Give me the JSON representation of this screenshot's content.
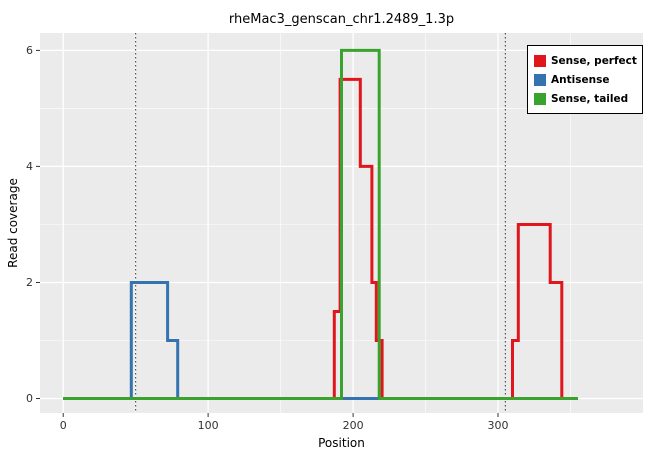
{
  "chart_data": {
    "type": "line",
    "title": "rheMac3_genscan_chr1.2489_1.3p",
    "xlabel": "Position",
    "ylabel": "Read coverage",
    "xlim": [
      -16,
      400
    ],
    "ylim": [
      -0.25,
      6.3
    ],
    "x_ticks": [
      0,
      100,
      200,
      300
    ],
    "y_ticks": [
      0,
      2,
      4,
      6
    ],
    "x_minor": [
      50,
      150,
      250,
      350
    ],
    "y_minor": [
      1,
      3,
      5
    ],
    "vlines": [
      50,
      305
    ],
    "panel_bg": "#ebebeb",
    "grid_color": "#ffffff",
    "vline_color": "#222222",
    "series": [
      {
        "name": "Sense, perfect",
        "color": "#e0161c",
        "step_points": [
          [
            0,
            0
          ],
          [
            187,
            0
          ],
          [
            187,
            1.5
          ],
          [
            191,
            1.5
          ],
          [
            191,
            5.5
          ],
          [
            205,
            5.5
          ],
          [
            205,
            4
          ],
          [
            213,
            4
          ],
          [
            213,
            2
          ],
          [
            216,
            2
          ],
          [
            216,
            1
          ],
          [
            220,
            1
          ],
          [
            220,
            0
          ],
          [
            310,
            0
          ],
          [
            310,
            1
          ],
          [
            314,
            1
          ],
          [
            314,
            3
          ],
          [
            336,
            3
          ],
          [
            336,
            2
          ],
          [
            344,
            2
          ],
          [
            344,
            0
          ],
          [
            355,
            0
          ]
        ]
      },
      {
        "name": "Antisense",
        "color": "#3572b0",
        "step_points": [
          [
            0,
            0
          ],
          [
            47,
            0
          ],
          [
            47,
            2
          ],
          [
            72,
            2
          ],
          [
            72,
            1
          ],
          [
            79,
            1
          ],
          [
            79,
            0
          ],
          [
            355,
            0
          ]
        ]
      },
      {
        "name": "Sense, tailed",
        "color": "#3aa32e",
        "step_points": [
          [
            0,
            0
          ],
          [
            192,
            0
          ],
          [
            192,
            6
          ],
          [
            218,
            6
          ],
          [
            218,
            0
          ],
          [
            355,
            0
          ]
        ]
      }
    ],
    "legend": {
      "position": "top-right",
      "labels": [
        "Sense, perfect",
        "Antisense",
        "Sense, tailed"
      ]
    }
  }
}
